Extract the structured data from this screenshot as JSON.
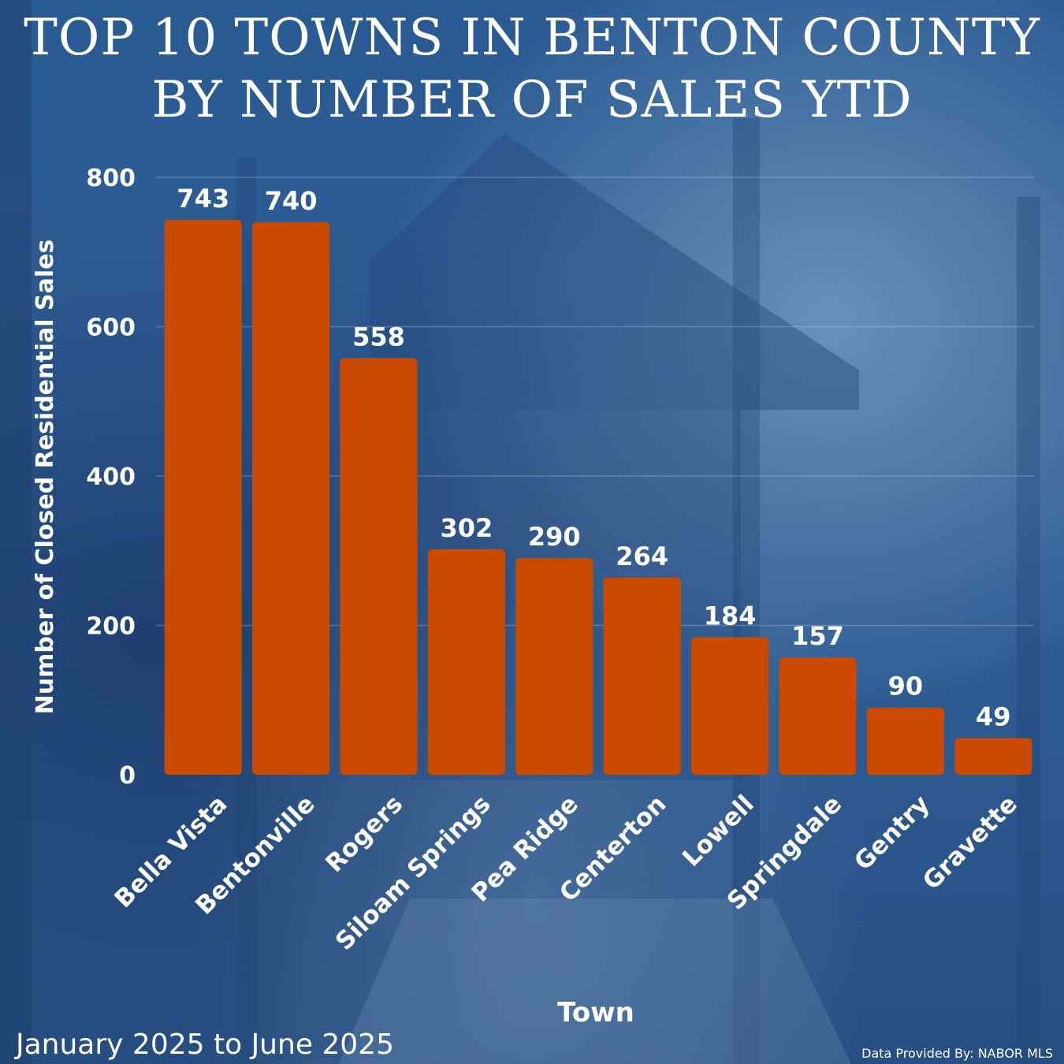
{
  "title": {
    "line1": "TOP 10 TOWNS IN BENTON COUNTY",
    "line2": "BY NUMBER OF SALES YTD"
  },
  "footer": {
    "date_range": "January 2025 to June 2025",
    "source": "Data Provided By: NABOR MLS"
  },
  "colors": {
    "bar": "#cc4a00",
    "background": "#2c5b92",
    "text": "#ffffff"
  },
  "chart_data": {
    "type": "bar",
    "xlabel": "Town",
    "ylabel": "Number of Closed Residential Sales",
    "ylim": [
      0,
      800
    ],
    "yticks": [
      0,
      200,
      400,
      600,
      800
    ],
    "grid": true,
    "categories": [
      "Bella Vista",
      "Bentonville",
      "Rogers",
      "Siloam Springs",
      "Pea Ridge",
      "Centerton",
      "Lowell",
      "Springdale",
      "Gentry",
      "Gravette"
    ],
    "values": [
      743,
      740,
      558,
      302,
      290,
      264,
      184,
      157,
      90,
      49
    ]
  }
}
